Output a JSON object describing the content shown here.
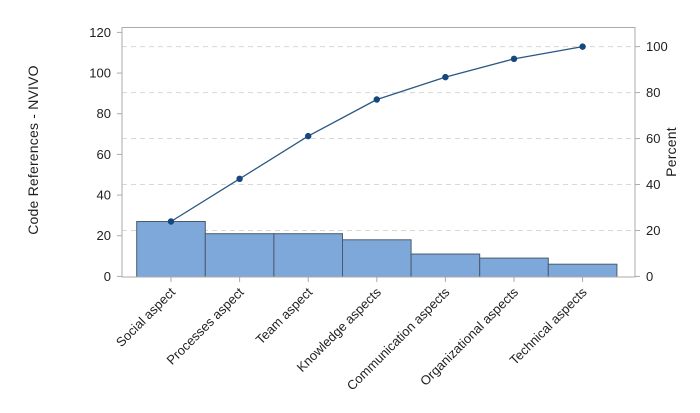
{
  "chart_data": {
    "type": "pareto (bar + cumulative line)",
    "title": "",
    "categories": [
      "Social aspect",
      "Processes aspect",
      "Team aspect",
      "Knowledge aspects",
      "Communication aspects",
      "Organizational aspects",
      "Technical aspects"
    ],
    "values": [
      27,
      21,
      21,
      18,
      11,
      9,
      6
    ],
    "total": 113,
    "cumulative_counts": [
      27,
      48,
      69,
      87,
      98,
      107,
      113
    ],
    "cumulative_percent": [
      23.9,
      42.5,
      61.1,
      77.0,
      86.7,
      94.7,
      100
    ],
    "y_left": {
      "label": "Code References - NVIVO",
      "ticks": [
        0,
        20,
        40,
        60,
        80,
        100,
        120
      ],
      "range": [
        0,
        120
      ]
    },
    "y_right": {
      "label": "Percent",
      "ticks": [
        0,
        20,
        40,
        60,
        80,
        100
      ],
      "range": [
        0,
        100
      ]
    },
    "grid": "dashed horizontal lines at right-axis (Percent) ticks",
    "legend": "none",
    "colors": {
      "bar_fill": "#7FA8DA",
      "bar_border": "#4A5A6A",
      "line": "#2A5783",
      "marker": "#16477E",
      "grid": "#D8D8D8",
      "axis": "#ABABAB",
      "text": "#1F1F1F",
      "background": "#FFFFFF"
    }
  }
}
